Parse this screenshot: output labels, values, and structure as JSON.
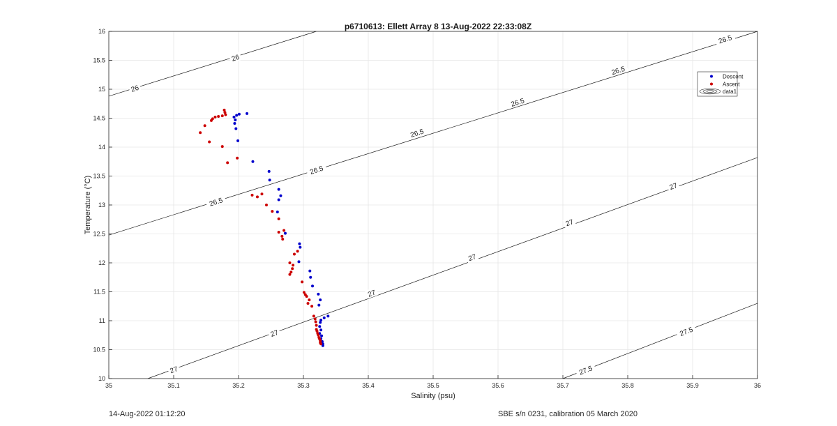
{
  "chart_data": {
    "type": "scatter",
    "title": "p6710613: Ellett Array 8 13-Aug-2022 22:33:08Z",
    "xlabel": "Salinity (psu)",
    "ylabel": "Temperature (°C)",
    "xlim": [
      35,
      36
    ],
    "ylim": [
      10,
      16
    ],
    "xticks": [
      "35",
      "35.1",
      "35.2",
      "35.3",
      "35.4",
      "35.5",
      "35.6",
      "35.7",
      "35.8",
      "35.9",
      "36"
    ],
    "yticks": [
      "10",
      "10.5",
      "11",
      "11.5",
      "12",
      "12.5",
      "13",
      "13.5",
      "14",
      "14.5",
      "15",
      "15.5",
      "16"
    ],
    "grid": true,
    "legend_position": "top-right",
    "series": [
      {
        "name": "Descent",
        "color": "#0000cc",
        "marker": "dot",
        "points": [
          [
            35.213,
            14.58
          ],
          [
            35.201,
            14.57
          ],
          [
            35.197,
            14.55
          ],
          [
            35.193,
            14.52
          ],
          [
            35.195,
            14.47
          ],
          [
            35.194,
            14.41
          ],
          [
            35.196,
            14.32
          ],
          [
            35.199,
            14.11
          ],
          [
            35.222,
            13.75
          ],
          [
            35.247,
            13.58
          ],
          [
            35.248,
            13.43
          ],
          [
            35.262,
            13.27
          ],
          [
            35.265,
            13.16
          ],
          [
            35.262,
            13.09
          ],
          [
            35.26,
            12.88
          ],
          [
            35.272,
            12.51
          ],
          [
            35.294,
            12.33
          ],
          [
            35.295,
            12.27
          ],
          [
            35.293,
            12.02
          ],
          [
            35.31,
            11.86
          ],
          [
            35.311,
            11.75
          ],
          [
            35.314,
            11.6
          ],
          [
            35.323,
            11.46
          ],
          [
            35.326,
            11.36
          ],
          [
            35.324,
            11.27
          ],
          [
            35.338,
            11.08
          ],
          [
            35.332,
            11.05
          ],
          [
            35.327,
            11.01
          ],
          [
            35.326,
            10.97
          ],
          [
            35.325,
            10.9
          ],
          [
            35.327,
            10.84
          ],
          [
            35.325,
            10.78
          ],
          [
            35.328,
            10.74
          ],
          [
            35.327,
            10.69
          ],
          [
            35.329,
            10.64
          ],
          [
            35.33,
            10.6
          ],
          [
            35.33,
            10.57
          ]
        ]
      },
      {
        "name": "Ascent",
        "color": "#cc0000",
        "marker": "dot",
        "points": [
          [
            35.178,
            14.64
          ],
          [
            35.179,
            14.6
          ],
          [
            35.18,
            14.56
          ],
          [
            35.175,
            14.54
          ],
          [
            35.169,
            14.53
          ],
          [
            35.164,
            14.52
          ],
          [
            35.16,
            14.49
          ],
          [
            35.158,
            14.46
          ],
          [
            35.148,
            14.37
          ],
          [
            35.141,
            14.25
          ],
          [
            35.155,
            14.09
          ],
          [
            35.175,
            14.01
          ],
          [
            35.198,
            13.81
          ],
          [
            35.183,
            13.73
          ],
          [
            35.221,
            13.17
          ],
          [
            35.236,
            13.19
          ],
          [
            35.229,
            13.14
          ],
          [
            35.243,
            13.0
          ],
          [
            35.252,
            12.89
          ],
          [
            35.262,
            12.76
          ],
          [
            35.27,
            12.56
          ],
          [
            35.262,
            12.53
          ],
          [
            35.267,
            12.46
          ],
          [
            35.268,
            12.41
          ],
          [
            35.291,
            12.2
          ],
          [
            35.286,
            12.15
          ],
          [
            35.279,
            12.0
          ],
          [
            35.284,
            11.96
          ],
          [
            35.283,
            11.9
          ],
          [
            35.281,
            11.84
          ],
          [
            35.279,
            11.8
          ],
          [
            35.298,
            11.67
          ],
          [
            35.301,
            11.49
          ],
          [
            35.303,
            11.45
          ],
          [
            35.305,
            11.42
          ],
          [
            35.309,
            11.36
          ],
          [
            35.307,
            11.3
          ],
          [
            35.313,
            11.25
          ],
          [
            35.316,
            11.08
          ],
          [
            35.318,
            11.03
          ],
          [
            35.319,
            10.98
          ],
          [
            35.32,
            10.92
          ],
          [
            35.32,
            10.85
          ],
          [
            35.321,
            10.82
          ],
          [
            35.322,
            10.78
          ],
          [
            35.323,
            10.75
          ],
          [
            35.324,
            10.71
          ],
          [
            35.325,
            10.68
          ],
          [
            35.326,
            10.65
          ],
          [
            35.326,
            10.62
          ],
          [
            35.327,
            10.6
          ]
        ]
      }
    ],
    "legend_entries": [
      "Descent",
      "Ascent",
      "data1"
    ],
    "contours": [
      {
        "level_label": "26",
        "p0": [
          35,
          14.88
        ],
        "p1": [
          35.32,
          16.0
        ],
        "labels": [
          [
            35.04,
            15.02
          ],
          [
            35.195,
            15.55
          ]
        ]
      },
      {
        "level_label": "26.5",
        "p0": [
          35,
          12.48
        ],
        "p1": [
          36,
          16.0
        ],
        "labels": [
          [
            35.165,
            13.06
          ],
          [
            35.32,
            13.61
          ],
          [
            35.475,
            14.25
          ],
          [
            35.63,
            14.78
          ],
          [
            35.785,
            15.33
          ],
          [
            35.95,
            15.87
          ]
        ]
      },
      {
        "level_label": "27",
        "p0": [
          35.06,
          10.0
        ],
        "p1": [
          36,
          13.82
        ],
        "labels": [
          [
            35.1,
            10.16
          ],
          [
            35.255,
            10.79
          ],
          [
            35.405,
            11.48
          ],
          [
            35.56,
            12.1
          ],
          [
            35.71,
            12.7
          ],
          [
            35.87,
            13.33
          ]
        ]
      },
      {
        "level_label": "27.5",
        "p0": [
          35.7,
          10.0
        ],
        "p1": [
          36,
          11.3
        ],
        "labels": [
          [
            35.735,
            10.15
          ],
          [
            35.89,
            10.82
          ]
        ]
      }
    ]
  },
  "footer": {
    "timestamp": "14-Aug-2022 01:12:20",
    "calibration": "SBE s/n 0231, calibration 05 March 2020"
  }
}
